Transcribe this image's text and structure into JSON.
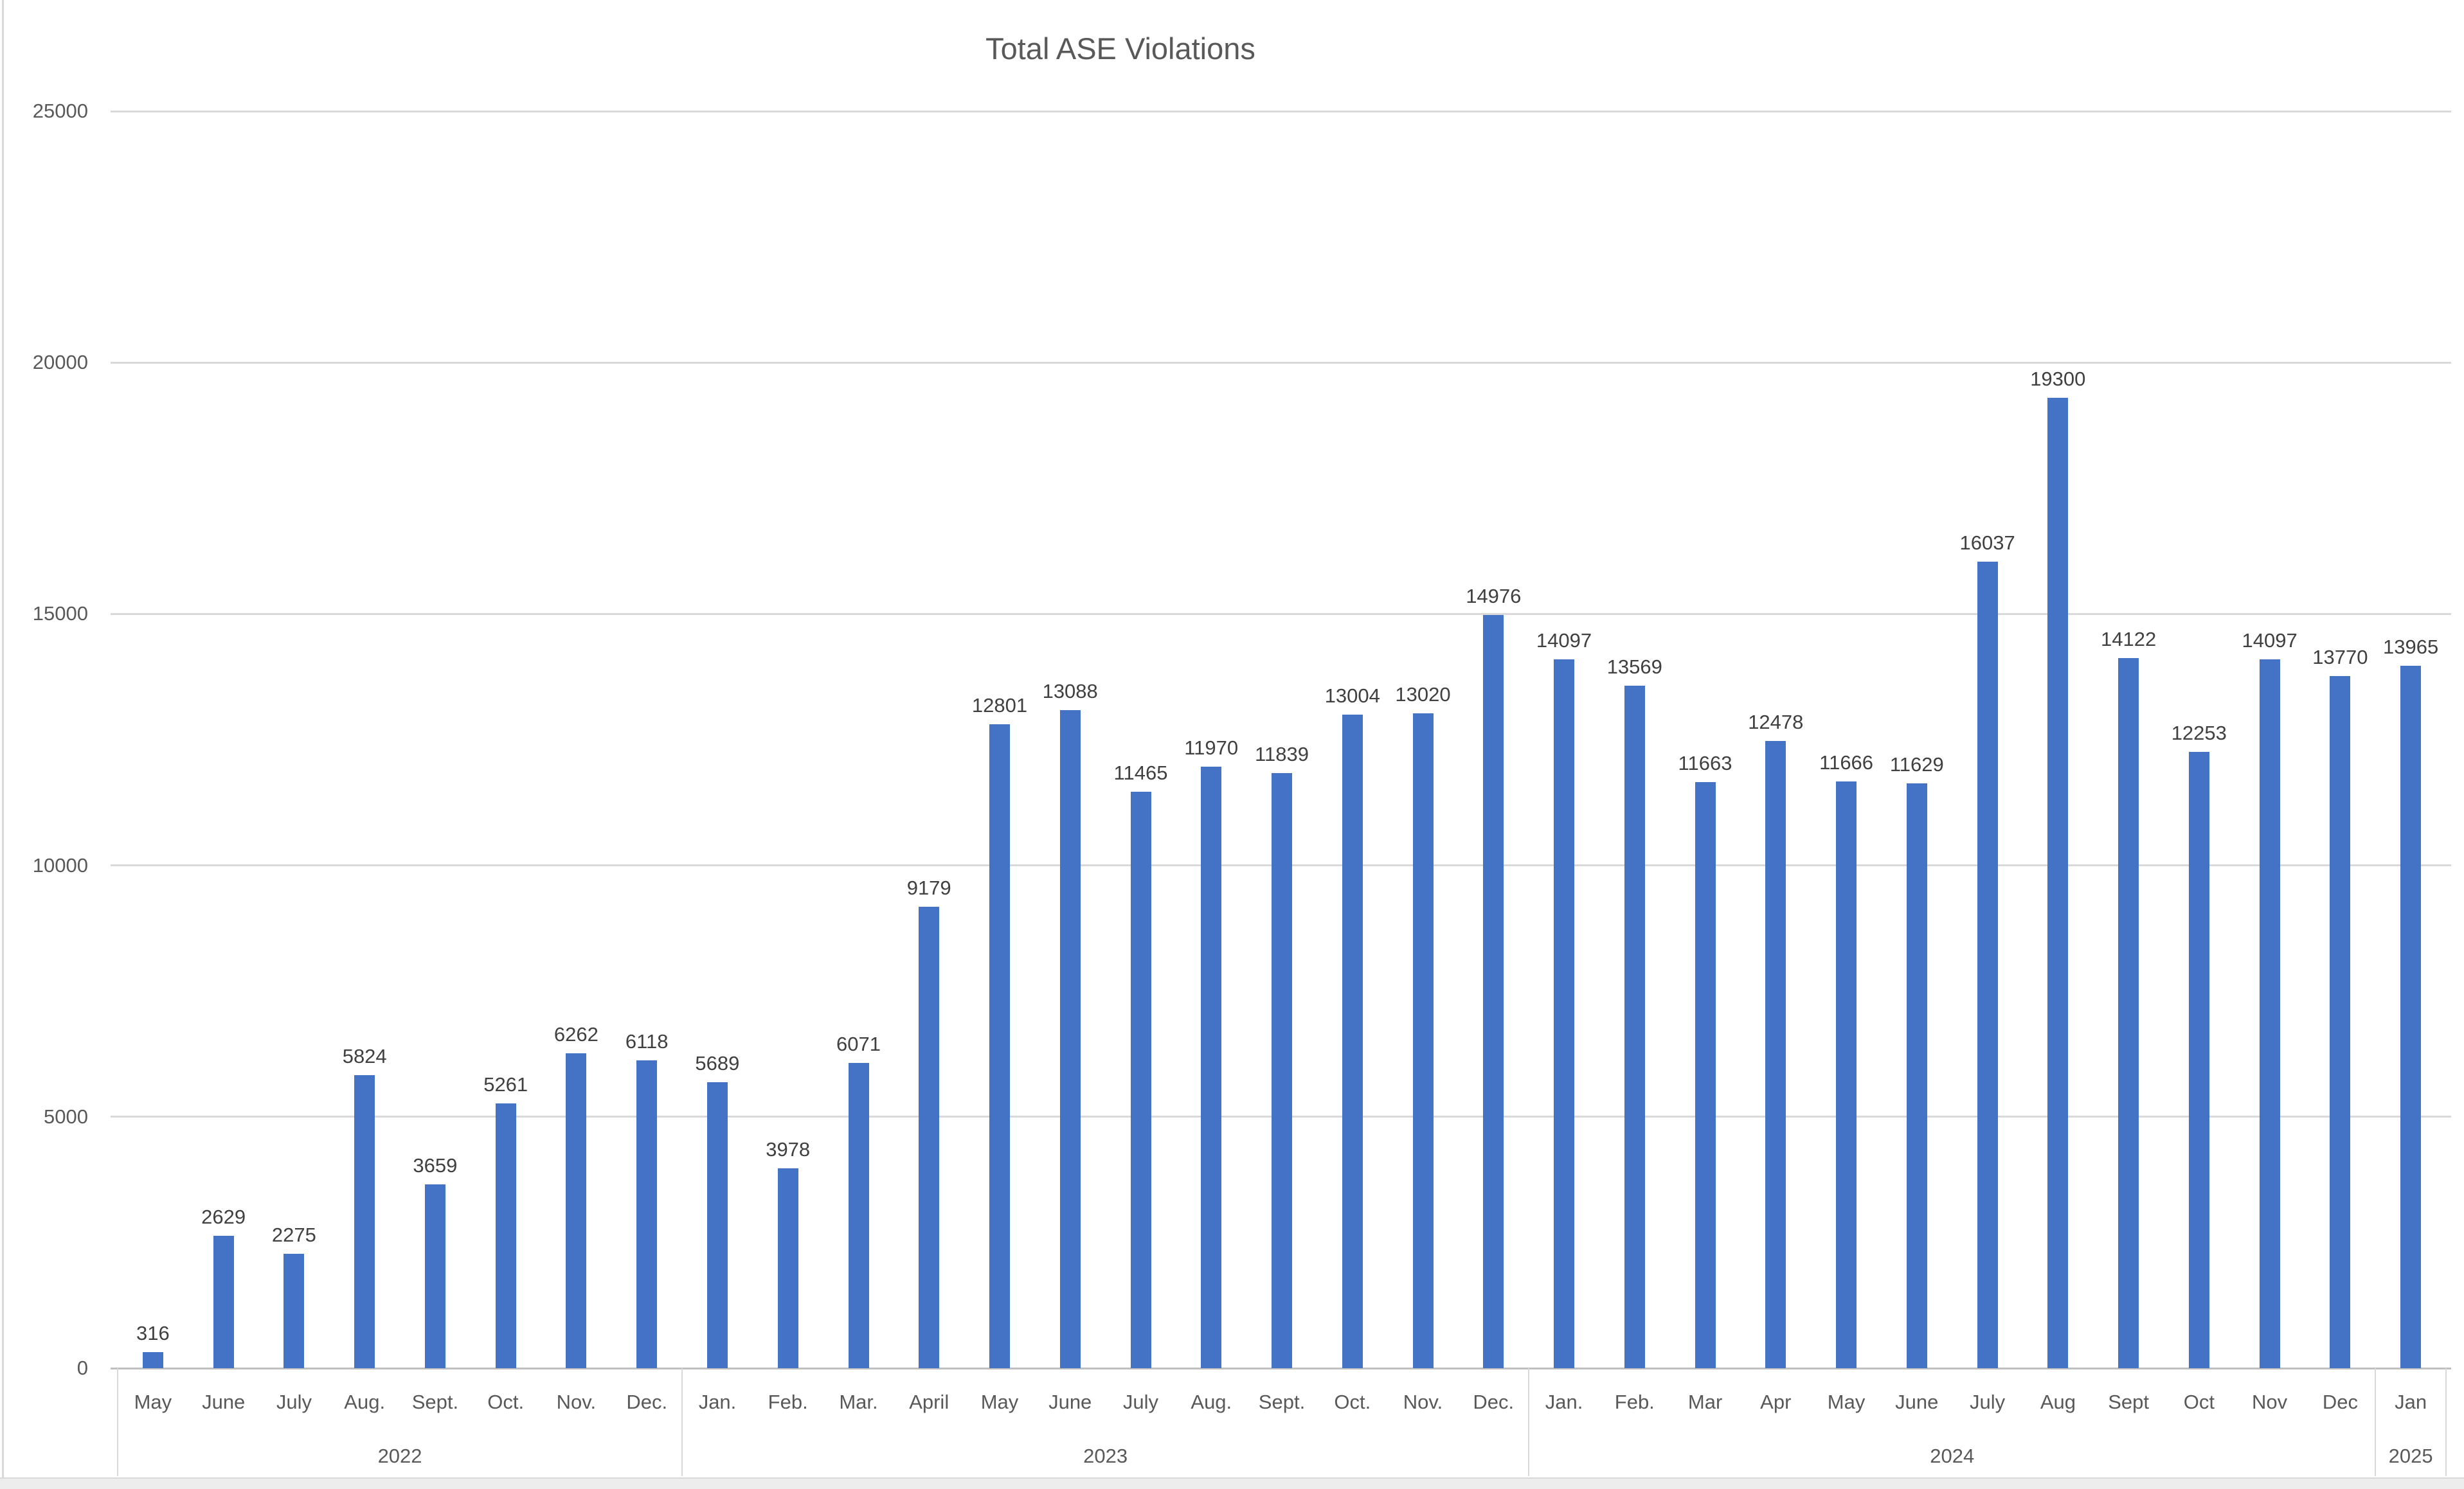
{
  "chart_data": {
    "type": "bar",
    "title": "Total ASE Violations",
    "xlabel": "",
    "ylabel": "",
    "ylim": [
      0,
      25000
    ],
    "yticks": [
      0,
      5000,
      10000,
      15000,
      20000,
      25000
    ],
    "grid": true,
    "legend": "none",
    "data_labels": true,
    "groups": [
      {
        "year": "2022",
        "months": [
          "May",
          "June",
          "July",
          "Aug.",
          "Sept.",
          "Oct.",
          "Nov.",
          "Dec."
        ],
        "values": [
          316,
          2629,
          2275,
          5824,
          3659,
          5261,
          6262,
          6118
        ]
      },
      {
        "year": "2023",
        "months": [
          "Jan.",
          "Feb.",
          "Mar.",
          "April",
          "May",
          "June",
          "July",
          "Aug.",
          "Sept.",
          "Oct.",
          "Nov.",
          "Dec."
        ],
        "values": [
          5689,
          3978,
          6071,
          9179,
          12801,
          13088,
          11465,
          11970,
          11839,
          13004,
          13020,
          14976
        ]
      },
      {
        "year": "2024",
        "months": [
          "Jan.",
          "Feb.",
          "Mar",
          "Apr",
          "May",
          "June",
          "July",
          "Aug",
          "Sept",
          "Oct",
          "Nov",
          "Dec"
        ],
        "values": [
          14097,
          13569,
          11663,
          12478,
          11666,
          11629,
          16037,
          19300,
          14122,
          12253,
          14097,
          13770
        ]
      },
      {
        "year": "2025",
        "months": [
          "Jan"
        ],
        "values": [
          13965
        ]
      }
    ]
  },
  "colors": {
    "bar": "#4472C4",
    "title_text": "#595959",
    "axis_text": "#595959",
    "data_label_text": "#404040",
    "gridline": "#D9D9D9",
    "axis_line": "#BFBFBF",
    "year_table_border": "#D9D9D9",
    "bottom_strip_bg": "#EDEDED",
    "window_edge": "#D9D9D9"
  }
}
